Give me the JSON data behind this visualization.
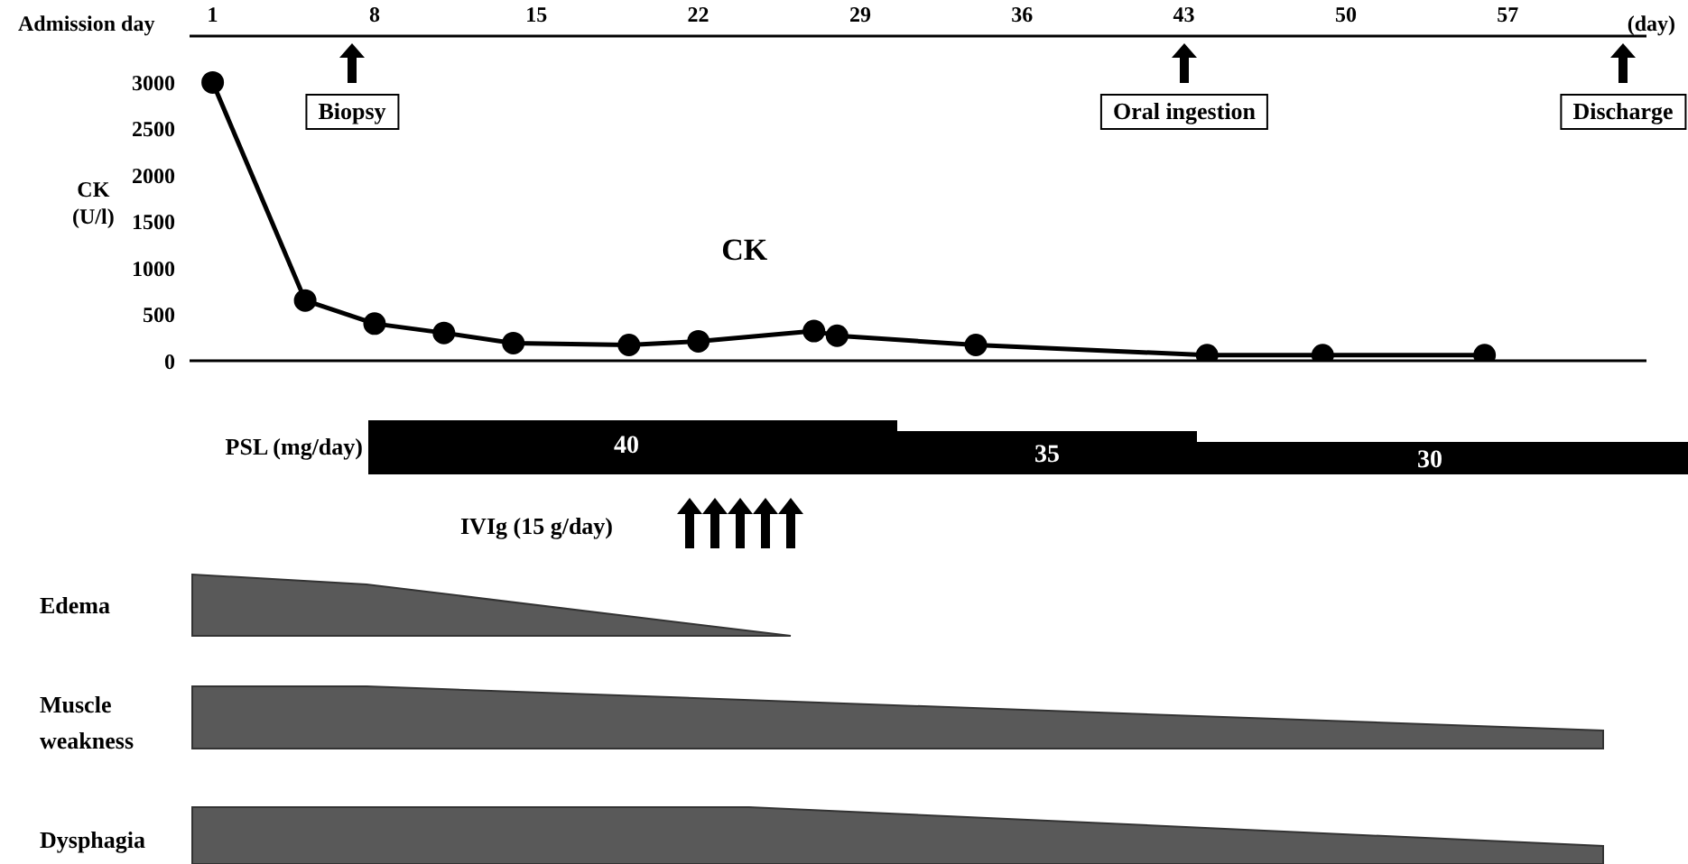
{
  "chart_data": [
    {
      "type": "line",
      "xlabel": "Admission day",
      "ylabel": "CK (U/l)",
      "xlim": [
        0,
        63
      ],
      "xticks": [
        1,
        8,
        15,
        22,
        29,
        36,
        43,
        50,
        57
      ],
      "ylim": [
        0,
        3500
      ],
      "yticks": [
        0,
        500,
        1000,
        1500,
        2000,
        2500,
        3000
      ],
      "marker": "circle",
      "line_style": "solid",
      "series": [
        {
          "name": "CK",
          "color": "#000000",
          "x": [
            1,
            5,
            8,
            11,
            14,
            19,
            22,
            27,
            28,
            34,
            44,
            49,
            56
          ],
          "values": [
            3000,
            650,
            400,
            300,
            190,
            170,
            210,
            320,
            270,
            170,
            60,
            60,
            60
          ]
        }
      ],
      "annotations": [
        "(day)",
        "Biopsy",
        "Oral ingestion",
        "Discharge"
      ]
    },
    {
      "type": "other",
      "annotations": [
        "PSL (mg/day)",
        "40",
        "35",
        "30",
        "IVIg (15 g/day)",
        "Edema",
        "Muscle weakness",
        "Dysphagia"
      ]
    }
  ]
}
